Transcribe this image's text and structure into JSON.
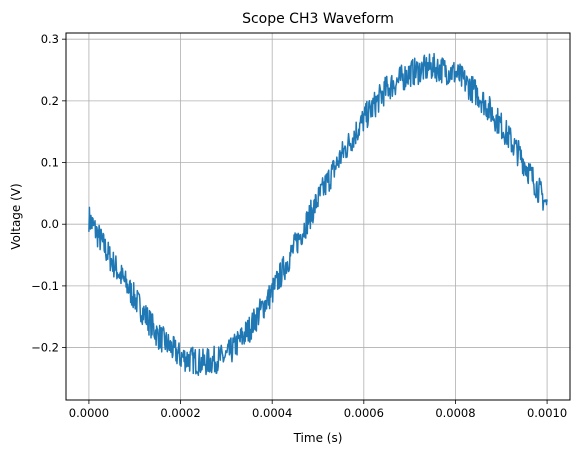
{
  "chart_data": {
    "type": "line",
    "title": "Scope CH3 Waveform",
    "xlabel": "Time (s)",
    "ylabel": "Voltage (V)",
    "xlim": [
      -5e-05,
      0.00105
    ],
    "ylim": [
      -0.285,
      0.31
    ],
    "grid": true,
    "x_ticks": [
      0.0,
      0.0002,
      0.0004,
      0.0006,
      0.0008,
      0.001
    ],
    "x_tick_labels": [
      "0.0000",
      "0.0002",
      "0.0004",
      "0.0006",
      "0.0008",
      "0.0010"
    ],
    "y_ticks": [
      -0.2,
      -0.1,
      0.0,
      0.1,
      0.2,
      0.3
    ],
    "y_tick_labels": [
      "−0.2",
      "−0.1",
      "0.0",
      "0.1",
      "0.2",
      "0.3"
    ],
    "series": [
      {
        "color": "#1f77b4",
        "x": [
          0.0,
          5e-05,
          0.0001,
          0.00015,
          0.0002,
          0.00025,
          0.0003,
          0.00035,
          0.0004,
          0.00045,
          0.0005,
          0.00055,
          0.0006,
          0.00065,
          0.0007,
          0.00075,
          0.0008,
          0.00085,
          0.0009,
          0.00095,
          0.001
        ],
        "y": [
          0.01,
          -0.06,
          -0.12,
          -0.18,
          -0.215,
          -0.225,
          -0.215,
          -0.17,
          -0.11,
          -0.035,
          0.04,
          0.11,
          0.17,
          0.22,
          0.245,
          0.255,
          0.245,
          0.21,
          0.16,
          0.1,
          0.03
        ]
      }
    ]
  }
}
